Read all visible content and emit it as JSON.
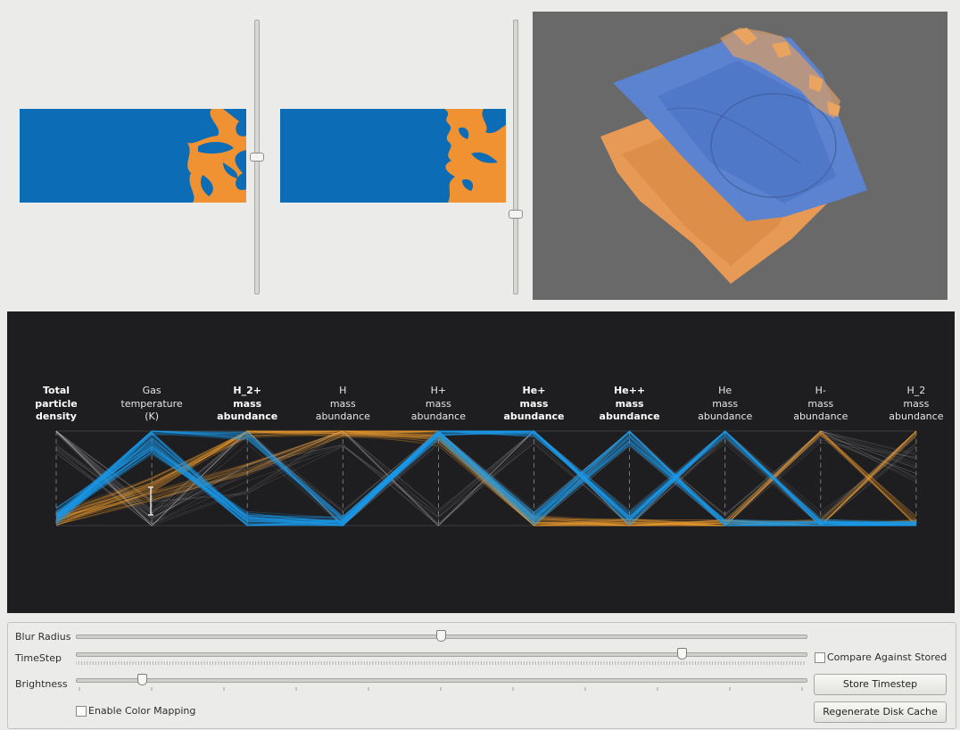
{
  "colors": {
    "blue": "#0d6cb6",
    "orange": "#f09231",
    "pc_background": "#1e1d1f",
    "view3d_background": "#696969"
  },
  "parallel_coordinates": {
    "axes": [
      {
        "label": [
          "Total",
          "particle",
          "density"
        ],
        "bold": true
      },
      {
        "label": [
          "Gas",
          "temperature",
          "(K)"
        ],
        "bold": false
      },
      {
        "label": [
          "H_2+",
          "mass",
          "abundance"
        ],
        "bold": true
      },
      {
        "label": [
          "H",
          "mass",
          "abundance"
        ],
        "bold": false
      },
      {
        "label": [
          "H+",
          "mass",
          "abundance"
        ],
        "bold": false
      },
      {
        "label": [
          "He+",
          "mass",
          "abundance"
        ],
        "bold": true
      },
      {
        "label": [
          "He++",
          "mass",
          "abundance"
        ],
        "bold": true
      },
      {
        "label": [
          "He",
          "mass",
          "abundance"
        ],
        "bold": false
      },
      {
        "label": [
          "H-",
          "mass",
          "abundance"
        ],
        "bold": false
      },
      {
        "label": [
          "H_2",
          "mass",
          "abundance"
        ],
        "bold": false
      }
    ]
  },
  "controls": {
    "blur_radius": {
      "label": "Blur Radius",
      "value": 0.5
    },
    "timestep": {
      "label": "TimeStep",
      "value": 0.83
    },
    "brightness": {
      "label": "Brightness",
      "value": 0.09
    },
    "compare_checkbox": {
      "label": "Compare Against Stored",
      "checked": false
    },
    "color_mapping_checkbox": {
      "label": "Enable Color Mapping",
      "checked": false
    },
    "store_button": {
      "label": "Store Timestep"
    },
    "regenerate_button": {
      "label": "Regenerate Disk Cache"
    }
  },
  "slice_sliders": {
    "left": {
      "value": 0.5
    },
    "right": {
      "value": 0.71
    }
  }
}
